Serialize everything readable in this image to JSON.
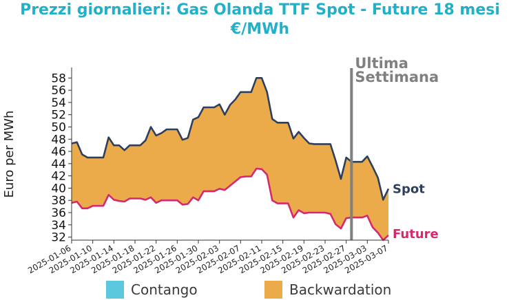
{
  "colors": {
    "title": "#22b0c8",
    "spot": "#2e3f5e",
    "future": "#d6286e",
    "backwardation": "#ebab4b",
    "contango": "#5bc8dd",
    "vline": "#808080",
    "axis": "#333333"
  },
  "chart_data": {
    "type": "area",
    "title": "Prezzi giornalieri: Gas Olanda TTF Spot - Future 18 mesi",
    "subtitle": "€/MWh",
    "ylabel": "Euro per MWh",
    "xlabel": "",
    "ylim": [
      31.5,
      59.5
    ],
    "yticks": [
      32,
      34,
      36,
      38,
      40,
      42,
      44,
      46,
      48,
      50,
      52,
      54,
      56,
      58
    ],
    "xlim": [
      "2025-01-06",
      "2025-03-07"
    ],
    "xticks": [
      "2025-01-06",
      "2025-01-10",
      "2025-01-14",
      "2025-01-18",
      "2025-01-22",
      "2025-01-26",
      "2025-01-30",
      "2025-02-03",
      "2025-02-07",
      "2025-02-11",
      "2025-02-15",
      "2025-02-19",
      "2025-02-23",
      "2025-02-27",
      "2025-03-03",
      "2025-03-07"
    ],
    "grid": false,
    "legend": "bottom",
    "legend_entries": [
      "Contango",
      "Backwardation"
    ],
    "vline": {
      "x": "2025-02-28",
      "label_line1": "Ultima",
      "label_line2": "Settimana"
    },
    "series": [
      {
        "name": "Spot",
        "x": [
          "2025-01-06",
          "2025-01-07",
          "2025-01-08",
          "2025-01-09",
          "2025-01-10",
          "2025-01-11",
          "2025-01-12",
          "2025-01-13",
          "2025-01-14",
          "2025-01-15",
          "2025-01-16",
          "2025-01-17",
          "2025-01-18",
          "2025-01-19",
          "2025-01-20",
          "2025-01-21",
          "2025-01-22",
          "2025-01-23",
          "2025-01-24",
          "2025-01-25",
          "2025-01-26",
          "2025-01-27",
          "2025-01-28",
          "2025-01-29",
          "2025-01-30",
          "2025-01-31",
          "2025-02-01",
          "2025-02-02",
          "2025-02-03",
          "2025-02-04",
          "2025-02-05",
          "2025-02-06",
          "2025-02-07",
          "2025-02-08",
          "2025-02-09",
          "2025-02-10",
          "2025-02-11",
          "2025-02-12",
          "2025-02-13",
          "2025-02-14",
          "2025-02-15",
          "2025-02-16",
          "2025-02-17",
          "2025-02-18",
          "2025-02-19",
          "2025-02-20",
          "2025-02-21",
          "2025-02-22",
          "2025-02-23",
          "2025-02-24",
          "2025-02-25",
          "2025-02-26",
          "2025-02-27",
          "2025-02-28",
          "2025-03-01",
          "2025-03-02",
          "2025-03-03",
          "2025-03-04",
          "2025-03-05",
          "2025-03-06",
          "2025-03-07"
        ],
        "values": [
          47.3,
          47.5,
          45.5,
          45.0,
          45.0,
          45.0,
          45.0,
          48.3,
          47.0,
          47.0,
          46.2,
          47.0,
          47.0,
          47.0,
          47.8,
          50.0,
          48.6,
          49.0,
          49.6,
          49.6,
          49.6,
          47.9,
          48.2,
          51.2,
          51.6,
          53.2,
          53.2,
          53.2,
          53.7,
          52.0,
          53.6,
          54.5,
          55.7,
          55.7,
          55.7,
          58.0,
          58.0,
          55.7,
          51.3,
          50.7,
          50.7,
          50.7,
          48.1,
          49.2,
          48.2,
          47.3,
          47.2,
          47.2,
          47.2,
          47.2,
          44.5,
          41.5,
          45.0,
          44.3,
          44.3,
          44.3,
          45.2,
          43.5,
          41.7,
          38.1,
          39.9
        ]
      },
      {
        "name": "Future",
        "x": [
          "2025-01-06",
          "2025-01-07",
          "2025-01-08",
          "2025-01-09",
          "2025-01-10",
          "2025-01-11",
          "2025-01-12",
          "2025-01-13",
          "2025-01-14",
          "2025-01-15",
          "2025-01-16",
          "2025-01-17",
          "2025-01-18",
          "2025-01-19",
          "2025-01-20",
          "2025-01-21",
          "2025-01-22",
          "2025-01-23",
          "2025-01-24",
          "2025-01-25",
          "2025-01-26",
          "2025-01-27",
          "2025-01-28",
          "2025-01-29",
          "2025-01-30",
          "2025-01-31",
          "2025-02-01",
          "2025-02-02",
          "2025-02-03",
          "2025-02-04",
          "2025-02-05",
          "2025-02-06",
          "2025-02-07",
          "2025-02-08",
          "2025-02-09",
          "2025-02-10",
          "2025-02-11",
          "2025-02-12",
          "2025-02-13",
          "2025-02-14",
          "2025-02-15",
          "2025-02-16",
          "2025-02-17",
          "2025-02-18",
          "2025-02-19",
          "2025-02-20",
          "2025-02-21",
          "2025-02-22",
          "2025-02-23",
          "2025-02-24",
          "2025-02-25",
          "2025-02-26",
          "2025-02-27",
          "2025-02-28",
          "2025-03-01",
          "2025-03-02",
          "2025-03-03",
          "2025-03-04",
          "2025-03-05",
          "2025-03-06",
          "2025-03-07"
        ],
        "values": [
          37.6,
          37.8,
          36.7,
          36.7,
          37.1,
          37.1,
          37.1,
          38.9,
          38.1,
          37.9,
          37.8,
          38.3,
          38.3,
          38.3,
          38.1,
          38.5,
          37.6,
          38.0,
          38.0,
          38.0,
          38.0,
          37.3,
          37.4,
          38.5,
          38.0,
          39.5,
          39.5,
          39.5,
          39.9,
          39.7,
          40.4,
          41.1,
          41.8,
          41.9,
          41.9,
          43.2,
          43.1,
          42.2,
          38.0,
          37.5,
          37.5,
          37.5,
          35.2,
          36.4,
          35.9,
          36.0,
          36.0,
          36.0,
          36.0,
          35.8,
          34.1,
          33.4,
          35.1,
          35.2,
          35.2,
          35.2,
          35.5,
          33.6,
          32.7,
          31.5,
          32.3
        ]
      }
    ]
  }
}
